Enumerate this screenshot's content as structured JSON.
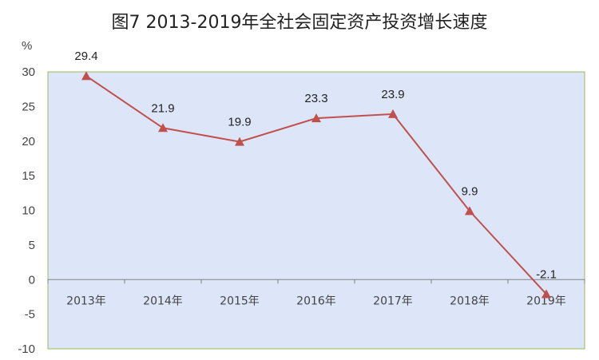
{
  "chart_data": {
    "type": "line",
    "title": "图7 2013-2019年全社会固定资产投资增长速度",
    "ylabel": "%",
    "categories": [
      "2013年",
      "2014年",
      "2015年",
      "2016年",
      "2017年",
      "2018年",
      "2019年"
    ],
    "values": [
      29.4,
      21.9,
      19.9,
      23.3,
      23.9,
      9.9,
      -2.1
    ],
    "data_labels": [
      "29.4",
      "21.9",
      "19.9",
      "23.3",
      "23.9",
      "9.9",
      "-2.1"
    ],
    "yticks": [
      "30",
      "25",
      "20",
      "15",
      "10",
      "5",
      "0",
      "-5",
      "-10"
    ],
    "ytick_values": [
      30,
      25,
      20,
      15,
      10,
      5,
      0,
      -5,
      -10
    ],
    "ylim": [
      -10,
      30
    ],
    "grid": false,
    "marker": "triangle",
    "colors": {
      "line": "#C0504D",
      "plot_background": "#DCE6F8",
      "plot_border": "#9BBB59",
      "axis": "#808080"
    }
  }
}
